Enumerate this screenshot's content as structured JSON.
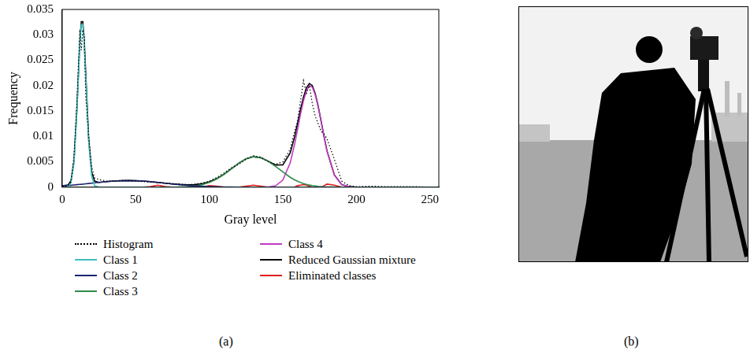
{
  "chart_data": {
    "type": "line",
    "panel_labels": [
      "(a)",
      "(b)"
    ],
    "x_label": "Gray level",
    "y_label": "Frequency",
    "xlim": [
      0,
      256
    ],
    "xticks": [
      0,
      50,
      100,
      150,
      200,
      250
    ],
    "ylim": [
      0,
      0.035
    ],
    "yticks": [
      0,
      0.005,
      0.01,
      0.015,
      0.02,
      0.025,
      0.03,
      0.035
    ],
    "grid": false,
    "legend": "bottom",
    "x": [
      0,
      4,
      6,
      8,
      10,
      12,
      13,
      14,
      15,
      16,
      18,
      20,
      22,
      25,
      30,
      35,
      40,
      45,
      50,
      55,
      60,
      65,
      70,
      75,
      80,
      85,
      90,
      95,
      100,
      105,
      110,
      115,
      120,
      125,
      130,
      135,
      140,
      145,
      150,
      155,
      158,
      160,
      162,
      164,
      166,
      168,
      170,
      172,
      174,
      176,
      178,
      180,
      185,
      190,
      195,
      200,
      210,
      220,
      230,
      240,
      250,
      255
    ],
    "series": [
      {
        "name": "Histogram",
        "color": "#000000",
        "line_style": "dotted",
        "values": [
          0,
          0.0003,
          0.001,
          0.006,
          0.017,
          0.031,
          0.027,
          0.031,
          0.03,
          0.018,
          0.01,
          0.004,
          0.0018,
          0.0015,
          0.0012,
          0.0012,
          0.0013,
          0.0013,
          0.0012,
          0.0011,
          0.001,
          0.0009,
          0.0008,
          0.0007,
          0.0006,
          0.0005,
          0.0006,
          0.0008,
          0.0012,
          0.0019,
          0.0028,
          0.0038,
          0.0045,
          0.0055,
          0.0062,
          0.0059,
          0.005,
          0.0045,
          0.005,
          0.0075,
          0.011,
          0.013,
          0.017,
          0.021,
          0.0185,
          0.02,
          0.0165,
          0.014,
          0.0125,
          0.011,
          0.0105,
          0.0095,
          0.0055,
          0.0012,
          0.0003,
          0.0001,
          0.0002,
          0.0001,
          0.0001,
          0.0001,
          0,
          0
        ]
      },
      {
        "name": "Class 1",
        "color": "#3fbfbf",
        "line_style": "solid",
        "values": [
          0,
          0.0001,
          0.0009,
          0.0047,
          0.0149,
          0.0282,
          0.032,
          0.032,
          0.0282,
          0.0218,
          0.0089,
          0.0022,
          0.0003,
          0,
          0,
          0,
          0,
          0,
          0,
          0,
          0,
          0,
          0,
          0,
          0,
          0,
          0,
          0,
          0,
          0,
          0,
          0,
          0,
          0,
          0,
          0,
          0,
          0,
          0,
          0,
          0,
          0,
          0,
          0,
          0,
          0,
          0,
          0,
          0,
          0,
          0,
          0,
          0,
          0,
          0,
          0,
          0,
          0,
          0,
          0,
          0,
          0
        ]
      },
      {
        "name": "Class 2",
        "color": "#1c2470",
        "line_style": "solid",
        "values": [
          0.00026,
          0.00034,
          0.00038,
          0.00043,
          0.00049,
          0.00055,
          0.00057,
          0.0006,
          0.00063,
          0.00066,
          0.00073,
          0.00079,
          0.00085,
          0.00094,
          0.00109,
          0.0012,
          0.00127,
          0.0013,
          0.00127,
          0.0012,
          0.00109,
          0.00094,
          0.00079,
          0.00063,
          0.00049,
          0.00036,
          0.00026,
          0.00018,
          0.00012,
          7e-05,
          4e-05,
          3e-05,
          1e-05,
          0,
          0,
          0,
          0,
          0,
          0,
          0,
          0,
          0,
          0,
          0,
          0,
          0,
          0,
          0,
          0,
          0,
          0,
          0,
          0,
          0,
          0,
          0,
          0,
          0,
          0,
          0,
          0,
          0
        ]
      },
      {
        "name": "Class 3",
        "color": "#2e8b4a",
        "line_style": "solid",
        "values": [
          0,
          0,
          0,
          0,
          0,
          0,
          0,
          0,
          0,
          0,
          0,
          0,
          0,
          0,
          0,
          0,
          0,
          0,
          0,
          0,
          0,
          0,
          0,
          1e-05,
          4e-05,
          0.0001,
          0.00023,
          0.00048,
          0.00092,
          0.0016,
          0.0025,
          0.0036,
          0.0047,
          0.0056,
          0.006,
          0.0058,
          0.0051,
          0.0041,
          0.003,
          0.00195,
          0.00145,
          0.00116,
          0.00092,
          0.00071,
          0.00055,
          0.00041,
          0.00031,
          0.00023,
          0.00016,
          0.00011,
          8e-05,
          5e-05,
          2e-05,
          0,
          0,
          0,
          0,
          0,
          0,
          0,
          0,
          0
        ]
      },
      {
        "name": "Class 4",
        "color": "#c03cc0",
        "line_style": "solid",
        "values": [
          0,
          0,
          0,
          0,
          0,
          0,
          0,
          0,
          0,
          0,
          0,
          0,
          0,
          0,
          0,
          0,
          0,
          0,
          0,
          0,
          0,
          0,
          0,
          0,
          0,
          0,
          0,
          0,
          0,
          0,
          0,
          0,
          0,
          0,
          0,
          0,
          4e-05,
          0.00027,
          0.0014,
          0.0048,
          0.0085,
          0.0114,
          0.0144,
          0.017,
          0.019,
          0.02,
          0.0197,
          0.0182,
          0.0158,
          0.0129,
          0.0099,
          0.0071,
          0.0024,
          0.0005,
          0.0001,
          0,
          0,
          0,
          0,
          0,
          0,
          0
        ]
      },
      {
        "name": "Reduced Gaussian mixture",
        "color": "#000000",
        "line_style": "solid",
        "values": [
          0.00026,
          0.00044,
          0.00128,
          0.00513,
          0.0154,
          0.0288,
          0.0326,
          0.0326,
          0.0288,
          0.0225,
          0.0096,
          0.003,
          0.0012,
          0.00094,
          0.00109,
          0.0012,
          0.00127,
          0.0013,
          0.00127,
          0.0012,
          0.00109,
          0.00094,
          0.00079,
          0.00064,
          0.00053,
          0.00046,
          0.00049,
          0.00066,
          0.00104,
          0.00167,
          0.00254,
          0.00363,
          0.00471,
          0.0056,
          0.006,
          0.0058,
          0.00514,
          0.00437,
          0.0044,
          0.00675,
          0.00995,
          0.01256,
          0.01532,
          0.01771,
          0.01955,
          0.02041,
          0.02001,
          0.01843,
          0.01596,
          0.01301,
          0.00998,
          0.00715,
          0.00242,
          0.0005,
          0.0001,
          0,
          0,
          0,
          0,
          0,
          0,
          0
        ]
      },
      {
        "name": "Eliminated classes",
        "color": "#e01e1e",
        "line_style": "solid",
        "values": [
          0,
          0,
          0,
          0,
          0,
          0,
          0,
          0,
          0,
          0,
          0,
          0,
          0,
          0,
          0,
          0,
          0,
          0,
          0,
          0,
          0.0001,
          0.0004,
          0.0001,
          0,
          0,
          0,
          0,
          0,
          0.0003,
          0.0002,
          0,
          0,
          0,
          0.0002,
          0.0004,
          0.0002,
          0,
          0,
          0,
          0,
          0,
          0.0003,
          0.0004,
          0.0005,
          0.0004,
          0.0002,
          0,
          0,
          0,
          0,
          0.0003,
          0.0006,
          0.0004,
          0,
          0,
          0,
          0,
          0,
          0,
          0,
          0,
          0
        ]
      }
    ]
  }
}
